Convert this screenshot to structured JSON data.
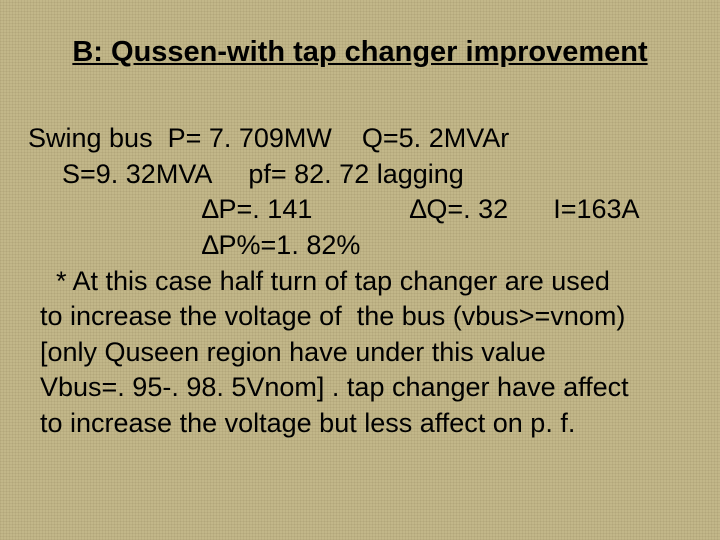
{
  "title": "B: Qussen-with tap changer  improvement",
  "lines": {
    "l1": "Swing bus  P= 7. 709MW    Q=5. 2MVAr",
    "l2": "S=9. 32MVA     pf= 82. 72 lagging",
    "l3": "∆P=. 141             ∆Q=. 32      I=163A",
    "l4": "∆P%=1. 82%",
    "l5": "* At this case half turn of tap changer are used",
    "l6": "to increase the voltage of  the bus (vbus>=vnom)",
    "l7": "[only Quseen region have under this value",
    "l8": "Vbus=. 95-. 98. 5Vnom] . tap changer have affect",
    "l9": "to increase the voltage but less affect on p. f."
  }
}
